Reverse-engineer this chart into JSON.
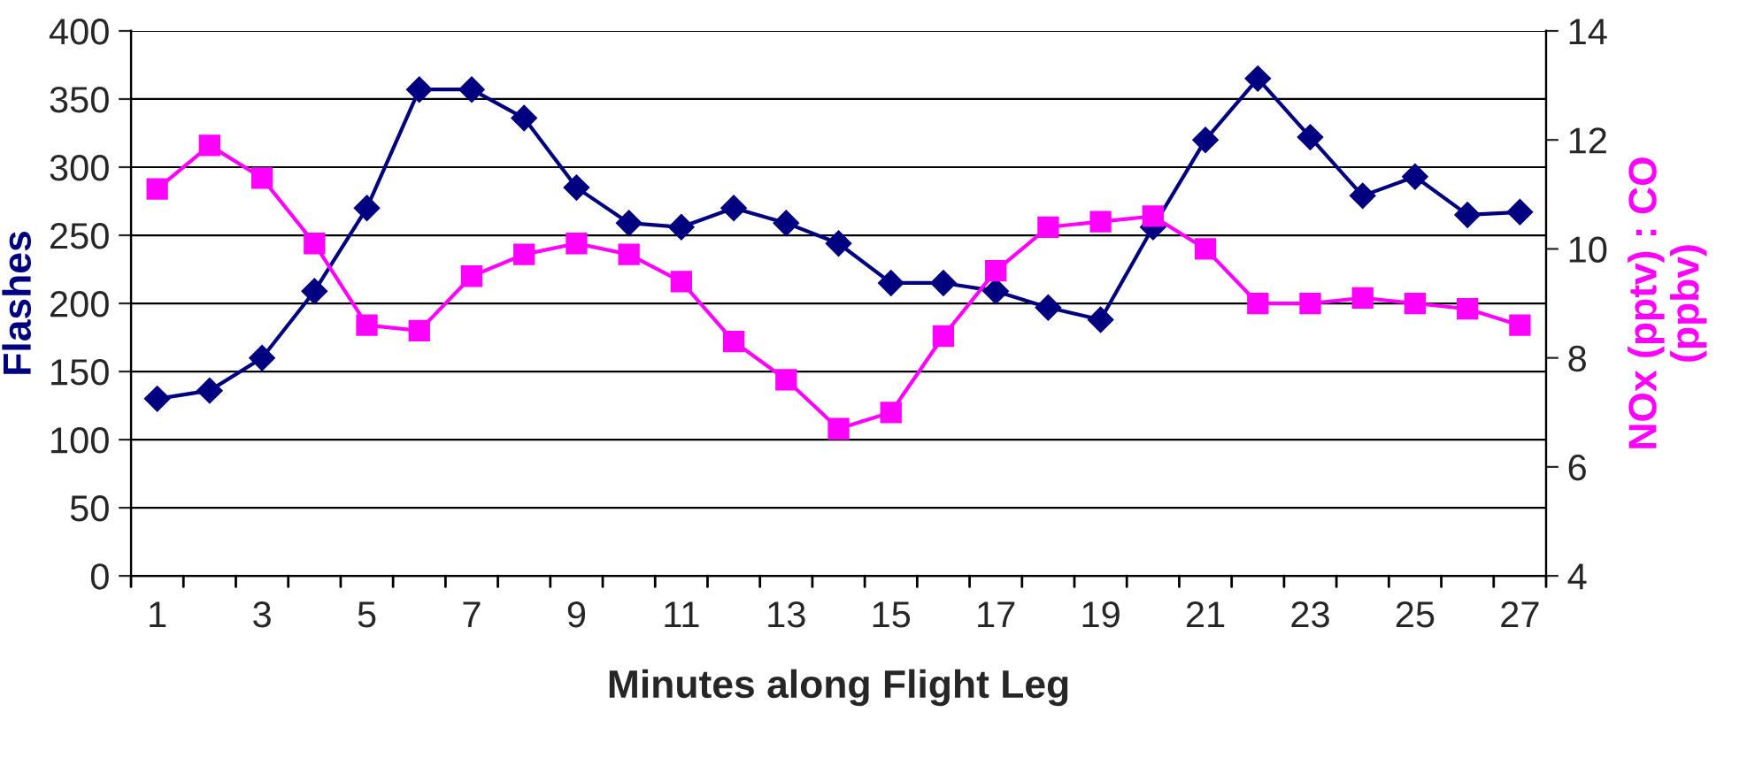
{
  "chart_data": {
    "type": "line",
    "xlabel": "Minutes along Flight Leg",
    "ylabel": "Flashes",
    "y2label": "NOx (pptv) : CO\n(ppbv)",
    "categories": [
      "1",
      null,
      "3",
      null,
      "5",
      null,
      "7",
      null,
      "9",
      null,
      "11",
      null,
      "13",
      null,
      "15",
      null,
      "17",
      null,
      "19",
      null,
      "21",
      null,
      "23",
      null,
      "25",
      null,
      "27"
    ],
    "series": [
      {
        "color": "#000080",
        "marker": "diamond",
        "values": [
          130,
          136,
          160,
          209,
          270,
          357,
          357,
          336,
          285,
          259,
          256,
          270,
          259,
          244,
          215,
          215,
          209,
          197,
          188,
          256,
          320,
          365,
          322,
          279,
          293,
          265,
          267
        ]
      },
      {
        "color": "#ff00ff",
        "marker": "square",
        "axis": "y2",
        "values": [
          11.1,
          11.9,
          11.3,
          10.1,
          8.6,
          8.5,
          9.5,
          9.9,
          10.1,
          9.9,
          9.4,
          8.3,
          7.6,
          6.7,
          7.0,
          8.4,
          9.6,
          10.4,
          10.5,
          10.6,
          10.0,
          9.0,
          9.0,
          9.1,
          9.0,
          8.9,
          8.6
        ]
      }
    ],
    "ylim": [
      0,
      400
    ],
    "yticks": [
      0,
      50,
      100,
      150,
      200,
      250,
      300,
      350,
      400
    ],
    "y2lim": [
      4,
      14
    ],
    "y2ticks": [
      4,
      6,
      8,
      10,
      12,
      14
    ],
    "grid": "y"
  }
}
